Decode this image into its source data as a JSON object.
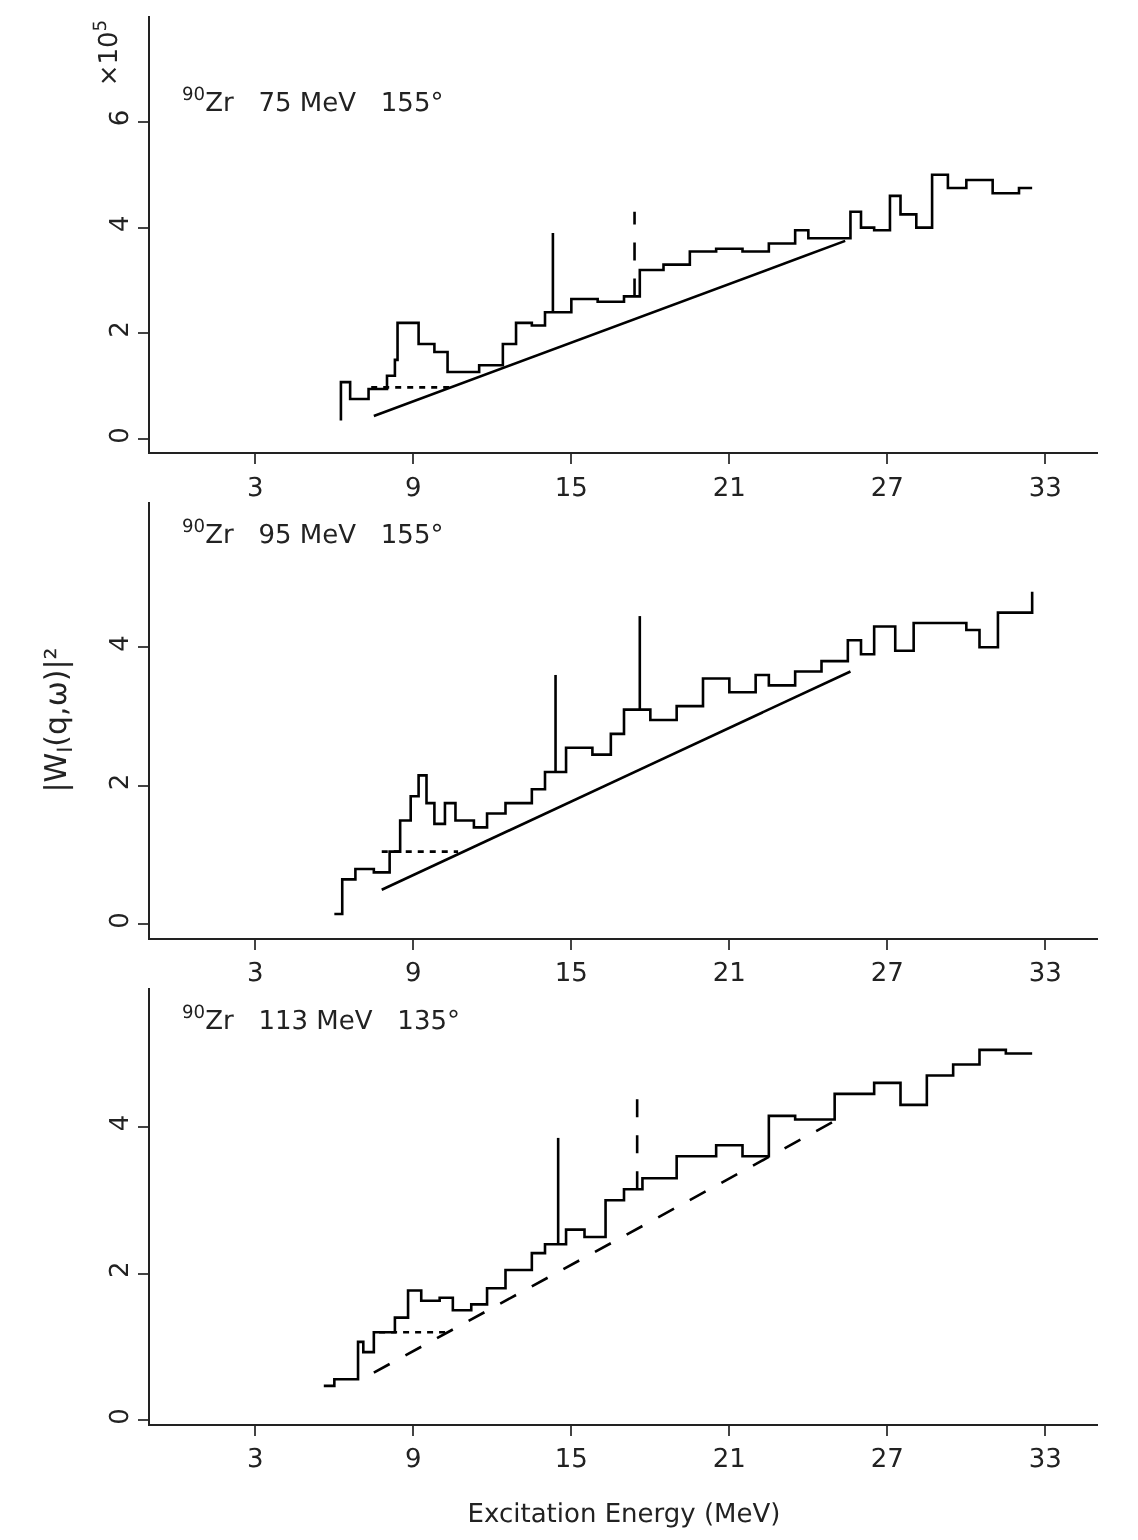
{
  "chart_data": [
    {
      "type": "step",
      "xlim": [
        -1,
        35
      ],
      "ylim": [
        -0.25,
        8
      ],
      "xticks": [
        3,
        9,
        15,
        21,
        27,
        33
      ],
      "yticks": [
        0,
        2,
        4,
        6
      ],
      "marker": "none",
      "annotations": [
        "×10$^{5}$",
        "$^{90}$Zr   75 MeV   155°"
      ],
      "series": [
        {
          "color": "#000000",
          "line_style": "solid",
          "x": [
            6.2,
            6.25,
            6.6,
            7.3,
            8.0,
            8.3,
            8.4,
            9.2,
            9.8,
            10.3,
            11.5,
            12.4,
            12.9,
            13.5,
            14.0,
            15.0,
            16.0,
            17.0,
            17.6,
            18.5,
            19.5,
            20.5,
            21.5,
            22.5,
            23.5,
            24.0,
            25.6,
            26.0,
            26.5,
            27.1,
            27.5,
            28.1,
            28.7,
            29.3,
            30.0,
            31.0,
            32.0,
            32.5
          ],
          "values": [
            0.38,
            1.08,
            0.76,
            0.95,
            1.2,
            1.5,
            2.2,
            1.8,
            1.65,
            1.27,
            1.4,
            1.8,
            2.2,
            2.15,
            2.4,
            2.65,
            2.6,
            2.7,
            3.2,
            3.3,
            3.55,
            3.6,
            3.55,
            3.7,
            3.95,
            3.8,
            4.3,
            4.0,
            3.95,
            4.6,
            4.25,
            4.0,
            5.0,
            4.75,
            4.9,
            4.65,
            4.75,
            4.75
          ]
        },
        {
          "type": "line",
          "color": "#000000",
          "line_style": "solid",
          "x": [
            7.5,
            25.4
          ],
          "values": [
            0.44,
            3.75
          ]
        },
        {
          "type": "line",
          "color": "#000000",
          "line_style": "dotted",
          "x": [
            7.4,
            10.5
          ],
          "values": [
            0.98,
            0.98
          ]
        },
        {
          "type": "line",
          "color": "#000000",
          "line_style": "solid",
          "x": [
            14.3,
            14.3
          ],
          "values": [
            2.4,
            3.9
          ]
        },
        {
          "type": "line",
          "color": "#000000",
          "line_style": "dashed",
          "x": [
            17.4,
            17.4
          ],
          "values": [
            2.7,
            4.3
          ]
        }
      ]
    },
    {
      "type": "step",
      "xlim": [
        -1,
        35
      ],
      "ylim": [
        -0.2,
        6.1
      ],
      "xticks": [
        3,
        9,
        15,
        21,
        27,
        33
      ],
      "yticks": [
        0,
        2,
        4
      ],
      "marker": "none",
      "ylabel": "|W$_{I}$(q,ω)|²",
      "annotations": [
        "$^{90}$Zr   95 MeV   155°"
      ],
      "series": [
        {
          "color": "#000000",
          "line_style": "solid",
          "x": [
            6.0,
            6.3,
            6.8,
            7.5,
            8.1,
            8.5,
            8.9,
            9.2,
            9.5,
            9.8,
            10.2,
            10.6,
            11.3,
            11.8,
            12.5,
            13.5,
            14.0,
            14.8,
            15.8,
            16.5,
            17.0,
            18.0,
            19.0,
            20.0,
            21.0,
            22.0,
            22.5,
            23.5,
            24.5,
            25.5,
            26.0,
            26.5,
            27.3,
            28.0,
            30.0,
            30.5,
            31.2,
            32.5
          ],
          "values": [
            0.15,
            0.65,
            0.8,
            0.75,
            1.05,
            1.5,
            1.85,
            2.15,
            1.75,
            1.45,
            1.75,
            1.5,
            1.4,
            1.6,
            1.75,
            1.95,
            2.2,
            2.55,
            2.45,
            2.75,
            3.1,
            2.95,
            3.15,
            3.55,
            3.35,
            3.6,
            3.45,
            3.65,
            3.8,
            4.1,
            3.9,
            4.3,
            3.95,
            4.35,
            4.25,
            4.0,
            4.5,
            4.8
          ]
        },
        {
          "type": "line",
          "color": "#000000",
          "line_style": "solid",
          "x": [
            7.8,
            25.6
          ],
          "values": [
            0.5,
            3.65
          ]
        },
        {
          "type": "line",
          "color": "#000000",
          "line_style": "dotted",
          "x": [
            7.8,
            10.7
          ],
          "values": [
            1.05,
            1.05
          ]
        },
        {
          "type": "line",
          "color": "#000000",
          "line_style": "solid",
          "x": [
            14.4,
            14.4
          ],
          "values": [
            2.2,
            3.6
          ]
        },
        {
          "type": "line",
          "color": "#000000",
          "line_style": "solid",
          "x": [
            17.6,
            17.6
          ],
          "values": [
            3.1,
            4.45
          ]
        }
      ]
    },
    {
      "type": "step",
      "xlim": [
        -1,
        35
      ],
      "ylim": [
        -0.05,
        5.9
      ],
      "xticks": [
        3,
        9,
        15,
        21,
        27,
        33
      ],
      "yticks": [
        0,
        2,
        4
      ],
      "marker": "none",
      "xlabel": "Excitation Energy (MeV)",
      "annotations": [
        "$^{90}$Zr   113 MeV   135°"
      ],
      "series": [
        {
          "color": "#000000",
          "line_style": "solid",
          "x": [
            5.6,
            6.0,
            6.9,
            7.1,
            7.5,
            8.3,
            8.8,
            9.3,
            10.0,
            10.5,
            11.2,
            11.8,
            12.5,
            13.5,
            14.0,
            14.8,
            15.5,
            16.3,
            17.0,
            17.7,
            19.0,
            20.5,
            21.5,
            22.5,
            23.5,
            25.0,
            26.5,
            27.5,
            28.5,
            29.5,
            30.5,
            31.5,
            32.5
          ],
          "values": [
            0.47,
            0.56,
            1.07,
            0.93,
            1.2,
            1.4,
            1.77,
            1.63,
            1.67,
            1.5,
            1.58,
            1.8,
            2.05,
            2.28,
            2.4,
            2.6,
            2.5,
            3.0,
            3.15,
            3.3,
            3.6,
            3.75,
            3.6,
            4.15,
            4.1,
            4.45,
            4.6,
            4.3,
            4.7,
            4.85,
            5.05,
            5.0,
            5.0
          ]
        },
        {
          "type": "line",
          "color": "#000000",
          "line_style": "dashed",
          "x": [
            7.5,
            25.1
          ],
          "values": [
            0.65,
            4.1
          ]
        },
        {
          "type": "line",
          "color": "#000000",
          "line_style": "dotted",
          "x": [
            7.7,
            10.3
          ],
          "values": [
            1.2,
            1.2
          ]
        },
        {
          "type": "line",
          "color": "#000000",
          "line_style": "solid",
          "x": [
            14.5,
            14.5
          ],
          "values": [
            2.4,
            3.85
          ]
        },
        {
          "type": "line",
          "color": "#000000",
          "line_style": "dashed",
          "x": [
            17.5,
            17.5
          ],
          "values": [
            3.15,
            4.45
          ]
        }
      ]
    }
  ]
}
